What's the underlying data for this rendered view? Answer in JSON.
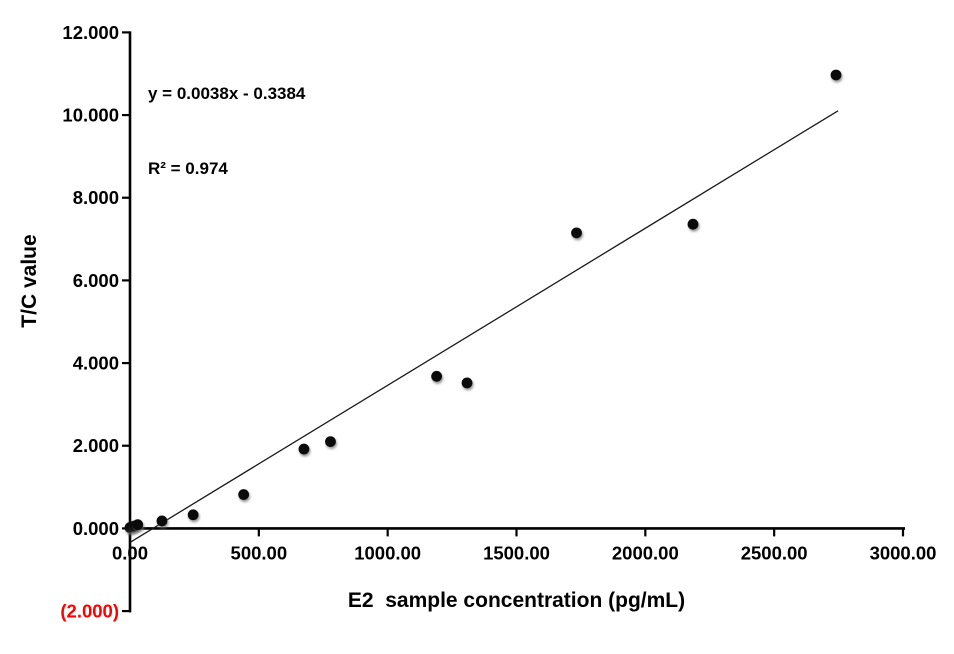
{
  "chart_data": {
    "type": "scatter",
    "title": "",
    "xlabel": "E2  sample concentration (pg/mL)",
    "ylabel": "T/C value",
    "annotation": {
      "line1": "y = 0.0038x - 0.3384",
      "line2": "R² = 0.974"
    },
    "xlim": [
      0,
      3000
    ],
    "ylim": [
      -2,
      12
    ],
    "grid": false,
    "legend": false,
    "x_ticks": [
      {
        "value": 0,
        "label": "0.00"
      },
      {
        "value": 500,
        "label": "500.00"
      },
      {
        "value": 1000,
        "label": "1000.00"
      },
      {
        "value": 1500,
        "label": "1500.00"
      },
      {
        "value": 2000,
        "label": "2000.00"
      },
      {
        "value": 2500,
        "label": "2500.00"
      },
      {
        "value": 3000,
        "label": "3000.00"
      }
    ],
    "y_ticks": [
      {
        "value": 12,
        "label": "12.000"
      },
      {
        "value": 10,
        "label": "10.000"
      },
      {
        "value": 8,
        "label": "8.000"
      },
      {
        "value": 6,
        "label": "6.000"
      },
      {
        "value": 4,
        "label": "4.000"
      },
      {
        "value": 2,
        "label": "2.000"
      },
      {
        "value": 0,
        "label": "0.000"
      },
      {
        "value": -2,
        "label": "(2.000)",
        "color": "#ff0000"
      }
    ],
    "points": [
      [
        0,
        0.02
      ],
      [
        8,
        0.04
      ],
      [
        18,
        0.06
      ],
      [
        30,
        0.09
      ],
      [
        124,
        0.18
      ],
      [
        245,
        0.33
      ],
      [
        441,
        0.82
      ],
      [
        675,
        1.92
      ],
      [
        778,
        2.1
      ],
      [
        1190,
        3.68
      ],
      [
        1308,
        3.52
      ],
      [
        1733,
        7.15
      ],
      [
        2185,
        7.36
      ],
      [
        2740,
        10.97
      ]
    ],
    "trendline": {
      "slope": 0.0038,
      "intercept": -0.3384,
      "x_start": 0,
      "x_end": 2748,
      "color": "#1a1a1a"
    },
    "colors": {
      "point": "#0b0b0b",
      "axis": "#000000",
      "text": "#000000",
      "negative_tick_label": "#ff0000"
    }
  }
}
